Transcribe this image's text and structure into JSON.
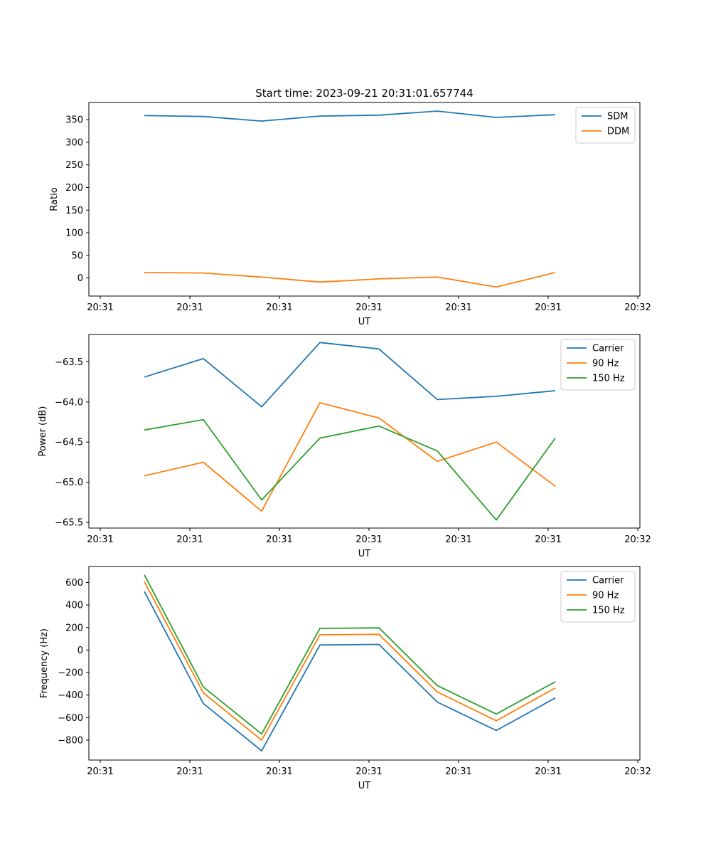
{
  "chart_data": [
    {
      "type": "line",
      "title": "Start time: 2023-09-21 20:31:01.657744",
      "xlabel": "UT",
      "ylabel": "Ratio",
      "x_tick_labels": [
        "20:31",
        "20:31",
        "20:31",
        "20:31",
        "20:31",
        "20:31",
        "20:32"
      ],
      "y_ticks": [
        0,
        50,
        100,
        150,
        200,
        250,
        300,
        350
      ],
      "ylim": [
        -40,
        388
      ],
      "grid": false,
      "legend_position": "top-right",
      "series": [
        {
          "name": "SDM",
          "color": "#1f77b4",
          "values": [
            359,
            357,
            347,
            358,
            360,
            369,
            355,
            361
          ]
        },
        {
          "name": "DDM",
          "color": "#ff7f0e",
          "values": [
            12,
            11,
            2,
            -9,
            -2,
            2,
            -20,
            12
          ]
        }
      ]
    },
    {
      "type": "line",
      "title": "",
      "xlabel": "UT",
      "ylabel": "Power (dB)",
      "x_tick_labels": [
        "20:31",
        "20:31",
        "20:31",
        "20:31",
        "20:31",
        "20:31",
        "20:32"
      ],
      "y_ticks": [
        -65.5,
        -65.0,
        -64.5,
        -64.0,
        -63.5
      ],
      "y_tick_labels": [
        "−65.5",
        "−65.0",
        "−64.5",
        "−64.0",
        "−63.5"
      ],
      "ylim": [
        -65.57,
        -63.16
      ],
      "grid": false,
      "legend_position": "top-right",
      "series": [
        {
          "name": "Carrier",
          "color": "#1f77b4",
          "values": [
            -63.69,
            -63.46,
            -64.06,
            -63.26,
            -63.34,
            -63.97,
            -63.93,
            -63.86
          ]
        },
        {
          "name": "90 Hz",
          "color": "#ff7f0e",
          "values": [
            -64.92,
            -64.75,
            -65.36,
            -64.01,
            -64.2,
            -64.74,
            -64.5,
            -65.05
          ]
        },
        {
          "name": "150 Hz",
          "color": "#2ca02c",
          "values": [
            -64.35,
            -64.22,
            -65.22,
            -64.45,
            -64.3,
            -64.61,
            -65.47,
            -64.45
          ]
        }
      ]
    },
    {
      "type": "line",
      "title": "",
      "xlabel": "UT",
      "ylabel": "Frequency (Hz)",
      "x_tick_labels": [
        "20:31",
        "20:31",
        "20:31",
        "20:31",
        "20:31",
        "20:31",
        "20:32"
      ],
      "y_ticks": [
        -800,
        -600,
        -400,
        -200,
        0,
        200,
        400,
        600
      ],
      "y_tick_labels": [
        "−800",
        "−600",
        "−400",
        "−200",
        "0",
        "200",
        "400",
        "600"
      ],
      "ylim": [
        -977,
        742
      ],
      "grid": false,
      "legend_position": "top-right",
      "series": [
        {
          "name": "Carrier",
          "color": "#1f77b4",
          "values": [
            520,
            -475,
            -895,
            45,
            50,
            -462,
            -715,
            -425
          ]
        },
        {
          "name": "90 Hz",
          "color": "#ff7f0e",
          "values": [
            608,
            -380,
            -800,
            135,
            140,
            -372,
            -628,
            -337
          ]
        },
        {
          "name": "150 Hz",
          "color": "#2ca02c",
          "values": [
            668,
            -328,
            -745,
            192,
            197,
            -315,
            -568,
            -282
          ]
        }
      ]
    }
  ]
}
